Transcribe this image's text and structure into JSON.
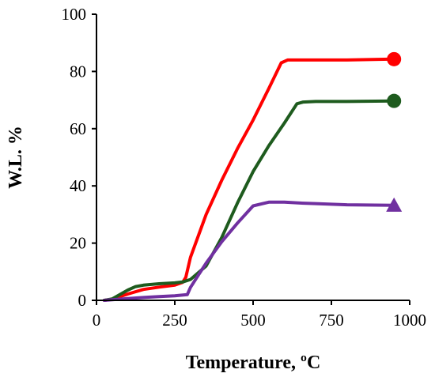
{
  "chart_data": {
    "type": "line",
    "xlabel": "Temperature, ºC",
    "ylabel": "W.L. %",
    "xlim": [
      0,
      1000
    ],
    "ylim": [
      0,
      100
    ],
    "xticks": [
      "0",
      "250",
      "500",
      "750",
      "1000"
    ],
    "yticks": [
      "0",
      "20",
      "40",
      "60",
      "80",
      "100"
    ],
    "grid": false,
    "legend": "none",
    "series": [
      {
        "color": "#ff0000",
        "marker": "circle",
        "x": [
          25,
          50,
          100,
          150,
          200,
          250,
          275,
          285,
          300,
          350,
          400,
          450,
          500,
          550,
          590,
          610,
          650,
          700,
          800,
          950
        ],
        "y": [
          0,
          0.4,
          2.2,
          3.8,
          4.6,
          5.3,
          6.3,
          8,
          15,
          30,
          42,
          53,
          63,
          74,
          83,
          84,
          84,
          84,
          84,
          84.3
        ]
      },
      {
        "color": "#1e5b1e",
        "marker": "circle",
        "x": [
          25,
          50,
          100,
          125,
          150,
          200,
          250,
          275,
          300,
          350,
          400,
          450,
          500,
          550,
          600,
          640,
          660,
          700,
          800,
          950
        ],
        "y": [
          0,
          0.5,
          3.6,
          4.8,
          5.3,
          5.8,
          6.1,
          6.4,
          7.3,
          12,
          22,
          34,
          45,
          54,
          62,
          68.7,
          69.3,
          69.5,
          69.5,
          69.7
        ]
      },
      {
        "color": "#7030a0",
        "marker": "triangle",
        "x": [
          25,
          50,
          100,
          150,
          200,
          250,
          290,
          300,
          350,
          400,
          450,
          500,
          550,
          600,
          650,
          700,
          800,
          950
        ],
        "y": [
          0,
          0.2,
          0.6,
          1,
          1.3,
          1.6,
          2,
          4.5,
          13,
          20.5,
          27,
          33,
          34.3,
          34.3,
          34,
          33.8,
          33.4,
          33.2
        ]
      }
    ]
  }
}
